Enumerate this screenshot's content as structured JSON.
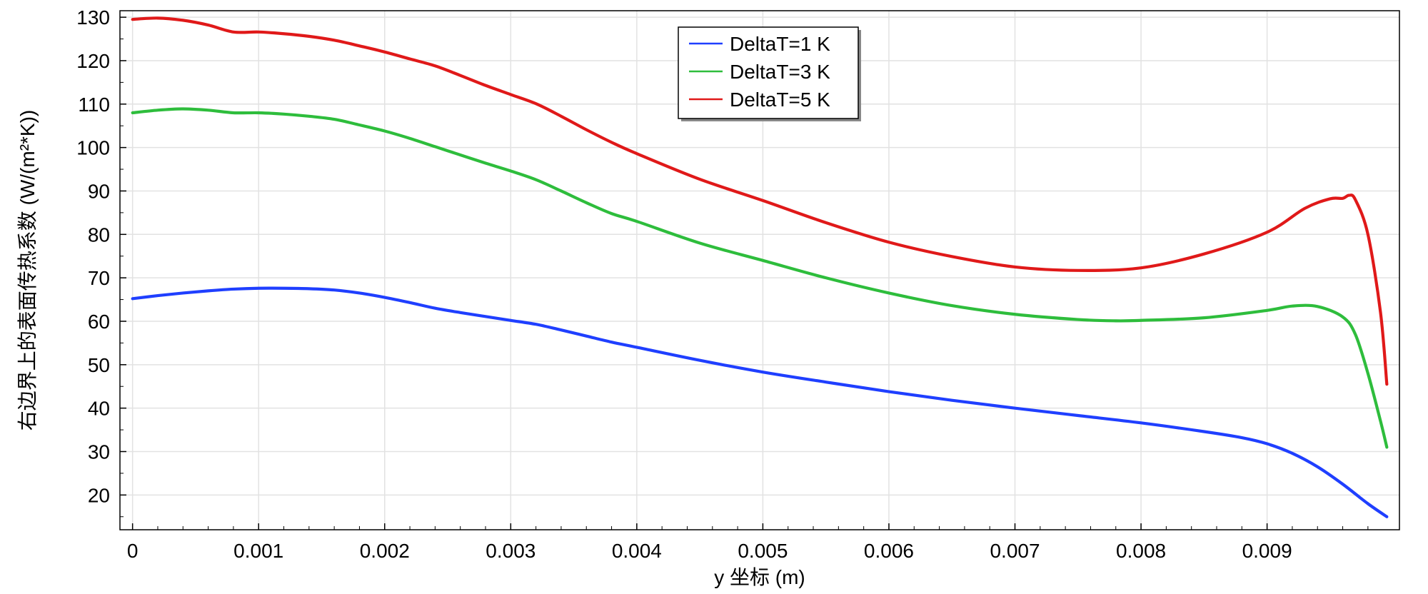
{
  "chart_data": {
    "type": "line",
    "title": "",
    "xlabel": "y 坐标 (m)",
    "ylabel": "右边界上的表面传热系数 (W/(m²*K))",
    "xlim": [
      -0.0001,
      0.01005
    ],
    "ylim": [
      12,
      131.5
    ],
    "xticks": [
      0,
      0.001,
      0.002,
      0.003,
      0.004,
      0.005,
      0.006,
      0.007,
      0.008,
      0.009
    ],
    "xtick_labels": [
      "0",
      "0.001",
      "0.002",
      "0.003",
      "0.004",
      "0.005",
      "0.006",
      "0.007",
      "0.008",
      "0.009"
    ],
    "yticks": [
      20,
      30,
      40,
      50,
      60,
      70,
      80,
      90,
      100,
      110,
      120,
      130
    ],
    "ytick_labels": [
      "20",
      "30",
      "40",
      "50",
      "60",
      "70",
      "80",
      "90",
      "100",
      "110",
      "120",
      "130"
    ],
    "grid": true,
    "legend_position": "top-center",
    "series": [
      {
        "name": "DeltaT=1 K",
        "color": "#1f3fff",
        "x": [
          0,
          0.0002,
          0.0004,
          0.0006,
          0.0008,
          0.001,
          0.0012,
          0.0014,
          0.0016,
          0.0018,
          0.002,
          0.0022,
          0.0024,
          0.0026,
          0.0028,
          0.003,
          0.0032,
          0.0034,
          0.0036,
          0.0038,
          0.004,
          0.0045,
          0.005,
          0.0055,
          0.006,
          0.0065,
          0.007,
          0.0075,
          0.008,
          0.0085,
          0.0088,
          0.009,
          0.0092,
          0.0094,
          0.0096,
          0.0098,
          0.00995
        ],
        "y": [
          65.2,
          65.9,
          66.5,
          67.0,
          67.4,
          67.6,
          67.6,
          67.5,
          67.2,
          66.5,
          65.5,
          64.3,
          63.0,
          62.0,
          61.1,
          60.2,
          59.3,
          58.0,
          56.6,
          55.2,
          54.0,
          51.0,
          48.3,
          46.0,
          43.8,
          41.8,
          40.0,
          38.3,
          36.6,
          34.6,
          33.2,
          31.8,
          29.6,
          26.5,
          22.5,
          18.0,
          15.0
        ]
      },
      {
        "name": "DeltaT=3 K",
        "color": "#2ebd3c",
        "x": [
          0,
          0.0002,
          0.0004,
          0.0006,
          0.0008,
          0.001,
          0.0012,
          0.0014,
          0.0016,
          0.0018,
          0.002,
          0.0022,
          0.0024,
          0.0026,
          0.0028,
          0.003,
          0.0032,
          0.0034,
          0.0036,
          0.0038,
          0.004,
          0.0045,
          0.005,
          0.0055,
          0.006,
          0.0065,
          0.007,
          0.0075,
          0.0078,
          0.008,
          0.0085,
          0.009,
          0.0092,
          0.0094,
          0.0096,
          0.0097,
          0.0098,
          0.0099,
          0.00995
        ],
        "y": [
          108.0,
          108.6,
          108.9,
          108.6,
          108.0,
          108.0,
          107.7,
          107.2,
          106.5,
          105.2,
          103.8,
          102.1,
          100.2,
          98.3,
          96.4,
          94.6,
          92.6,
          90.0,
          87.3,
          84.8,
          83.0,
          78.0,
          74.0,
          70.0,
          66.5,
          63.6,
          61.6,
          60.4,
          60.1,
          60.2,
          60.8,
          62.5,
          63.5,
          63.4,
          61.0,
          57.0,
          48.0,
          37.0,
          31.0
        ]
      },
      {
        "name": "DeltaT=5 K",
        "color": "#e01919",
        "x": [
          0,
          0.0002,
          0.0004,
          0.0006,
          0.0008,
          0.001,
          0.0012,
          0.0014,
          0.0016,
          0.0018,
          0.002,
          0.0022,
          0.0024,
          0.0026,
          0.0028,
          0.003,
          0.0032,
          0.0034,
          0.0036,
          0.0038,
          0.004,
          0.0045,
          0.005,
          0.0055,
          0.006,
          0.0065,
          0.007,
          0.0075,
          0.008,
          0.0085,
          0.009,
          0.0093,
          0.0095,
          0.0096,
          0.00965,
          0.0097,
          0.0098,
          0.0099,
          0.00995
        ],
        "y": [
          129.5,
          129.8,
          129.3,
          128.2,
          126.6,
          126.6,
          126.2,
          125.6,
          124.7,
          123.4,
          122.0,
          120.4,
          118.8,
          116.6,
          114.3,
          112.2,
          110.1,
          107.2,
          104.1,
          101.2,
          98.6,
          92.7,
          87.8,
          82.7,
          78.2,
          74.9,
          72.5,
          71.7,
          72.3,
          75.5,
          80.5,
          86.0,
          88.2,
          88.3,
          89.0,
          88.0,
          80.0,
          62.0,
          45.5
        ]
      }
    ]
  }
}
